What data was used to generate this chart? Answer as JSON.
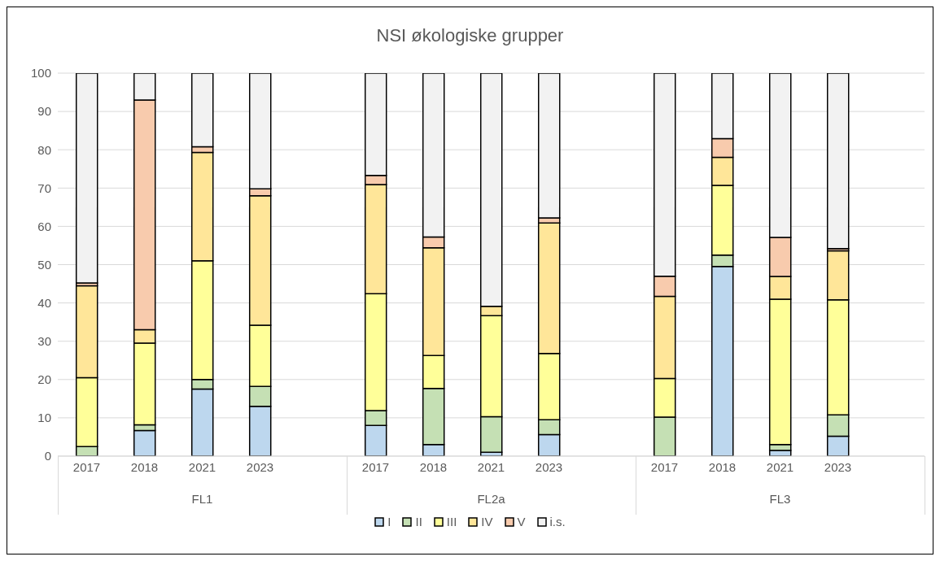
{
  "chart_data": {
    "type": "bar",
    "stacked": true,
    "title": "NSI økologiske grupper",
    "categories": [
      "2017",
      "2018",
      "2021",
      "2023",
      null,
      "2017",
      "2018",
      "2021",
      "2023",
      null,
      "2017",
      "2018",
      "2021",
      "2023",
      null
    ],
    "annotations": [
      "FL1",
      "FL2a",
      "FL3"
    ],
    "ylim": [
      0,
      100
    ],
    "yticks": [
      0,
      10,
      20,
      30,
      40,
      50,
      60,
      70,
      80,
      90,
      100
    ],
    "grid": "y",
    "legend": "bottom",
    "series": [
      {
        "name": "I",
        "color": "#bdd7ee",
        "values": [
          0,
          6.7,
          17.5,
          13,
          null,
          8,
          3,
          1,
          5.6,
          null,
          0,
          49.5,
          1.5,
          5.2,
          null
        ]
      },
      {
        "name": "II",
        "color": "#c5e0b4",
        "values": [
          2.5,
          1.5,
          2.5,
          5.2,
          null,
          3.9,
          14.7,
          9.3,
          3.9,
          null,
          10.2,
          3,
          1.5,
          5.6,
          null
        ]
      },
      {
        "name": "III",
        "color": "#ffff99",
        "values": [
          18,
          21.3,
          31,
          16,
          null,
          30.5,
          8.6,
          26.4,
          17.3,
          null,
          10.1,
          18.2,
          38,
          30,
          null
        ]
      },
      {
        "name": "IV",
        "color": "#ffe699",
        "values": [
          24,
          3.5,
          28.3,
          33.8,
          null,
          28.5,
          28.1,
          2.4,
          34.1,
          null,
          21.4,
          7.3,
          5.9,
          12.8,
          null
        ]
      },
      {
        "name": "V",
        "color": "#f8cbad",
        "values": [
          0.7,
          60,
          1.5,
          1.8,
          null,
          2.4,
          2.8,
          0,
          1.3,
          null,
          5.3,
          4.9,
          10.2,
          0.6,
          null
        ]
      },
      {
        "name": "i.s.",
        "color": "#f2f2f2",
        "values": [
          54.8,
          7,
          19.2,
          30.2,
          null,
          26.7,
          42.8,
          60.9,
          37.8,
          null,
          53,
          17.1,
          42.9,
          45.8,
          null
        ]
      }
    ]
  }
}
